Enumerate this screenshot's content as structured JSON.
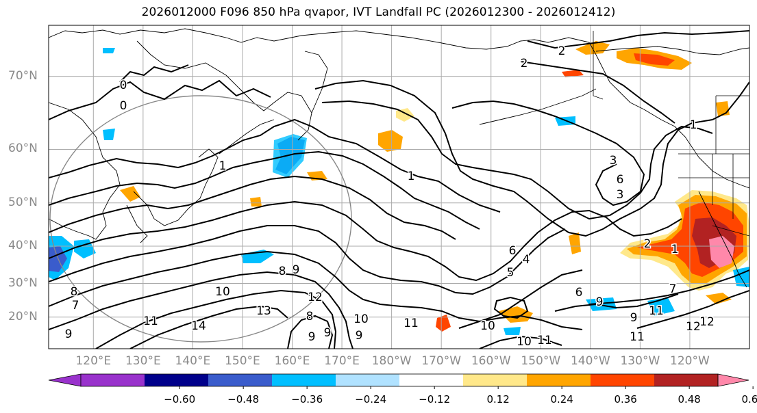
{
  "title": "2026012000 F096 850 hPa qvapor, IVT Landfall PC (2026012300 - 2026012412)",
  "map": {
    "lat_labels": [
      {
        "lat": 70,
        "text": "70°N"
      },
      {
        "lat": 60,
        "text": "60°N"
      },
      {
        "lat": 50,
        "text": "50°N"
      },
      {
        "lat": 40,
        "text": "40°N"
      },
      {
        "lat": 30,
        "text": "30°N"
      },
      {
        "lat": 20,
        "text": "20°N"
      }
    ],
    "lon_labels": [
      {
        "lon": 120,
        "text": "120°E"
      },
      {
        "lon": 130,
        "text": "130°E"
      },
      {
        "lon": 140,
        "text": "140°E"
      },
      {
        "lon": 150,
        "text": "150°E"
      },
      {
        "lon": 160,
        "text": "160°E"
      },
      {
        "lon": 170,
        "text": "170°E"
      },
      {
        "lon": 180,
        "text": "180°W"
      },
      {
        "lon": 190,
        "text": "170°W"
      },
      {
        "lon": 200,
        "text": "160°W"
      },
      {
        "lon": 210,
        "text": "150°W"
      },
      {
        "lon": 220,
        "text": "140°W"
      },
      {
        "lon": 230,
        "text": "130°W"
      },
      {
        "lon": 240,
        "text": "120°W"
      }
    ],
    "lon_range": [
      111,
      252
    ],
    "lat_range": [
      10,
      75
    ],
    "contour_labels": [
      "0",
      "0",
      "1",
      "1",
      "2",
      "3",
      "3",
      "2",
      "1",
      "1",
      "2",
      "6",
      "5",
      "4",
      "6",
      "8",
      "9",
      "7",
      "8",
      "9",
      "10",
      "13",
      "14",
      "12",
      "11",
      "8",
      "9",
      "11",
      "10",
      "9",
      "11",
      "10",
      "10",
      "11",
      "12",
      "6",
      "9",
      "9",
      "11",
      "12",
      "7",
      "9"
    ]
  },
  "colorbar": {
    "ticks": [
      "−0.60",
      "−0.48",
      "−0.36",
      "−0.24",
      "−0.12",
      "0.12",
      "0.24",
      "0.36",
      "0.48",
      "0.60"
    ],
    "colors": [
      "#9932cc",
      "#00008b",
      "#3a5ccc",
      "#00bfff",
      "#b0e2ff",
      "#ffffff",
      "#ffe88a",
      "#ffa500",
      "#ff4500",
      "#b22222",
      "#ff88aa"
    ]
  }
}
